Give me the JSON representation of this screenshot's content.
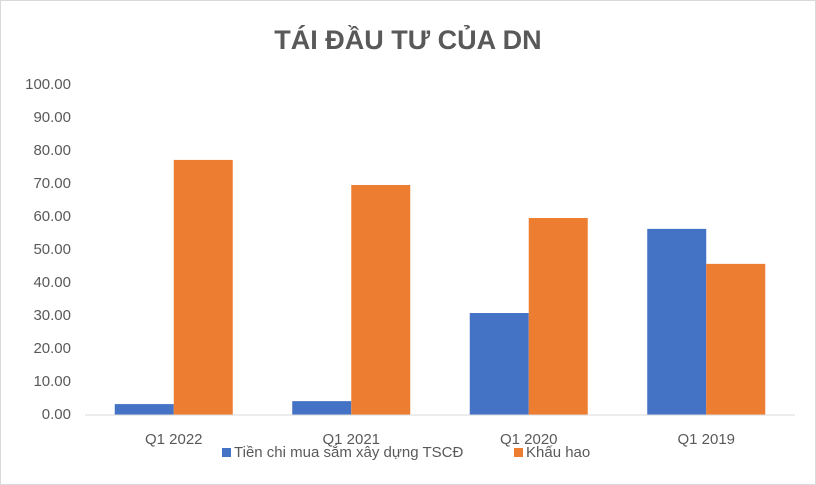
{
  "chart_data": {
    "type": "bar",
    "title": "TÁI ĐẦU TƯ CỦA DN",
    "categories": [
      "Q1 2022",
      "Q1 2021",
      "Q1 2020",
      "Q1 2019"
    ],
    "series": [
      {
        "name": "Tiền chi mua sắm xây dựng TSCĐ",
        "color": "#4472c4",
        "values": [
          3.3,
          4.2,
          30.9,
          56.4
        ]
      },
      {
        "name": "Khấu hao",
        "color": "#ed7d31",
        "values": [
          77.3,
          69.7,
          59.7,
          45.8
        ]
      }
    ],
    "ylim": [
      0,
      100
    ],
    "yticks": [
      {
        "value": 0,
        "label": "0.00"
      },
      {
        "value": 10,
        "label": "10.00"
      },
      {
        "value": 20,
        "label": "20.00"
      },
      {
        "value": 30,
        "label": "30.00"
      },
      {
        "value": 40,
        "label": "40.00"
      },
      {
        "value": 50,
        "label": "50.00"
      },
      {
        "value": 60,
        "label": "60.00"
      },
      {
        "value": 70,
        "label": "70.00"
      },
      {
        "value": 80,
        "label": "80.00"
      },
      {
        "value": 90,
        "label": "90.00"
      },
      {
        "value": 100,
        "label": "100.00"
      }
    ],
    "grid": false,
    "legend": "bottom"
  }
}
